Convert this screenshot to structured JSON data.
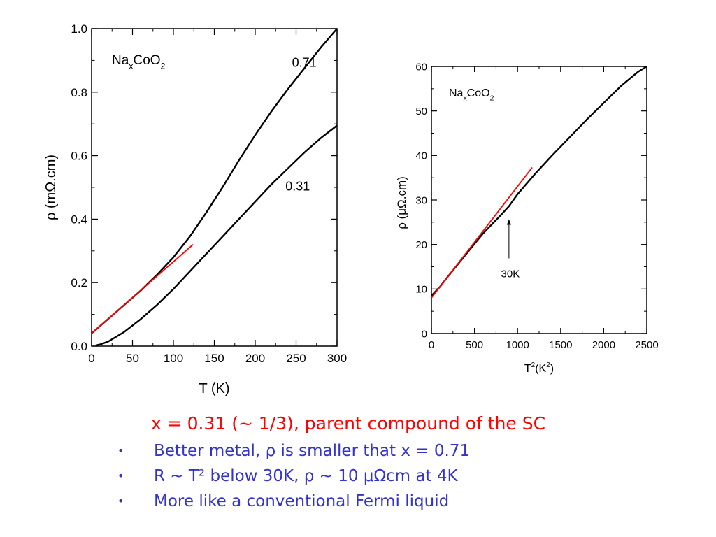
{
  "chart_data": [
    {
      "type": "line",
      "xlabel": "T (K)",
      "ylabel": "ρ (mΩ.cm)",
      "xlim": [
        0,
        300
      ],
      "ylim": [
        0,
        1.0
      ],
      "xticks": [
        "0",
        "50",
        "100",
        "150",
        "200",
        "250",
        "300"
      ],
      "yticks": [
        "0.0",
        "0.2",
        "0.4",
        "0.6",
        "0.8",
        "1.0"
      ],
      "inset_label": {
        "base": "Na",
        "sub1": "x",
        "mid": "CoO",
        "sub2": "2"
      },
      "grid": false,
      "series": [
        {
          "name": "0.71",
          "color": "#000000",
          "x": [
            0,
            20,
            40,
            60,
            80,
            100,
            120,
            140,
            160,
            180,
            200,
            220,
            240,
            260,
            280,
            300
          ],
          "y": [
            0.04,
            0.085,
            0.13,
            0.175,
            0.225,
            0.28,
            0.345,
            0.42,
            0.5,
            0.585,
            0.665,
            0.74,
            0.81,
            0.875,
            0.94,
            1.0
          ]
        },
        {
          "name": "0.31",
          "color": "#000000",
          "x": [
            5,
            10,
            20,
            40,
            60,
            80,
            100,
            120,
            140,
            160,
            180,
            200,
            220,
            240,
            260,
            280,
            300
          ],
          "y": [
            0.002,
            0.005,
            0.014,
            0.045,
            0.085,
            0.13,
            0.18,
            0.235,
            0.29,
            0.345,
            0.4,
            0.455,
            0.51,
            0.56,
            0.61,
            0.655,
            0.695
          ]
        },
        {
          "name": "",
          "color": "#ff0000",
          "x": [
            0,
            124
          ],
          "y": [
            0.04,
            0.32
          ]
        }
      ]
    },
    {
      "type": "line",
      "xlabel": "T²(K²)",
      "xlabel_parts": {
        "base": "T",
        "sup1": "2",
        "mid": "(K",
        "sup2": "2",
        "end": ")"
      },
      "ylabel": "ρ (μΩ.cm)",
      "xlim": [
        0,
        2500
      ],
      "ylim": [
        0,
        60
      ],
      "xticks": [
        "0",
        "500",
        "1000",
        "1500",
        "2000",
        "2500"
      ],
      "yticks": [
        "0",
        "10",
        "20",
        "30",
        "40",
        "50",
        "60"
      ],
      "inset_label": {
        "base": "Na",
        "sub1": "x",
        "mid": "CoO",
        "sub2": "2"
      },
      "grid": false,
      "annotation": {
        "text": "30K",
        "x": 900,
        "y": 26
      },
      "series": [
        {
          "name": "",
          "color": "#000000",
          "x": [
            0,
            100,
            200,
            400,
            600,
            800,
            900,
            1000,
            1200,
            1400,
            1600,
            1800,
            2000,
            2200,
            2400,
            2500
          ],
          "y": [
            8.5,
            10.5,
            13,
            17.8,
            22.5,
            26.5,
            28.6,
            31.3,
            35.8,
            40,
            44,
            48,
            51.8,
            55.6,
            58.8,
            60
          ]
        },
        {
          "name": "",
          "color": "#ff0000",
          "x": [
            0,
            1170
          ],
          "y": [
            8,
            37.3
          ]
        }
      ]
    }
  ],
  "caption": {
    "title": "x = 0.31 (~ 1/3), parent compound of the SC",
    "bullet_symbol": "•",
    "bullets": [
      "Better metal, ρ is smaller that x = 0.71",
      "R ~ T² below 30K, ρ ~ 10 μΩcm at 4K",
      "More like a conventional Fermi liquid"
    ]
  }
}
